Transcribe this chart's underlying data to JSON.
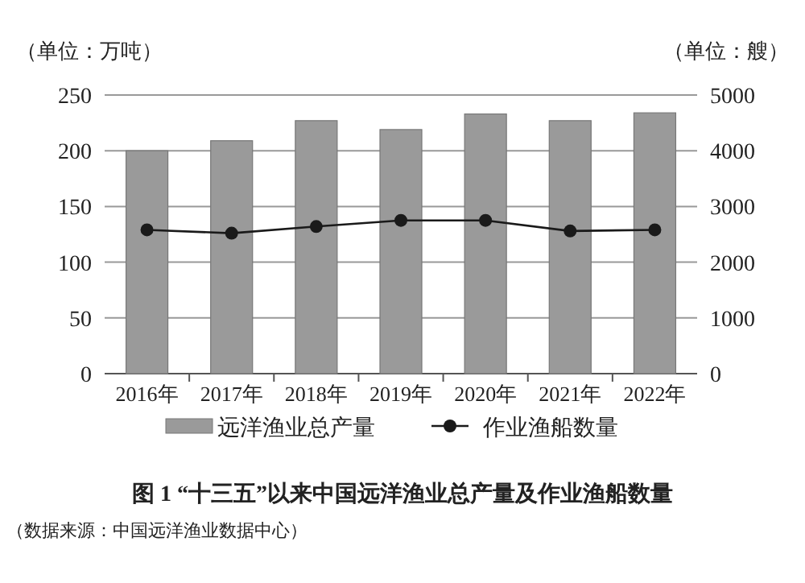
{
  "chart_data": {
    "type": "bar",
    "title": "图 1 “十三五”以来中国远洋渔业总产量及作业渔船数量",
    "ylabel": "（单位：万吨）",
    "y2label": "（单位：艘）",
    "annotations": [
      "（数据来源：中国远洋渔业数据中心）"
    ],
    "categories": [
      "2016年",
      "2017年",
      "2018年",
      "2019年",
      "2020年",
      "2021年",
      "2022年"
    ],
    "series": [
      {
        "name": "远洋渔业总产量",
        "color": "#9a9a9a",
        "values": [
          200,
          209,
          227,
          219,
          233,
          227,
          234
        ]
      },
      {
        "name": "作业渔船数量",
        "type": "line",
        "axis": "y2",
        "marker": "circle",
        "color": "#1a1a1a",
        "values": [
          2580,
          2520,
          2640,
          2750,
          2750,
          2560,
          2580
        ]
      }
    ],
    "ylim": [
      0,
      250
    ],
    "yticks": [
      0,
      50,
      100,
      150,
      200,
      250
    ],
    "y2lim": [
      0,
      5000
    ],
    "y2ticks": [
      0,
      1000,
      2000,
      3000,
      4000,
      5000
    ],
    "grid": "y",
    "legend": "bottom"
  }
}
